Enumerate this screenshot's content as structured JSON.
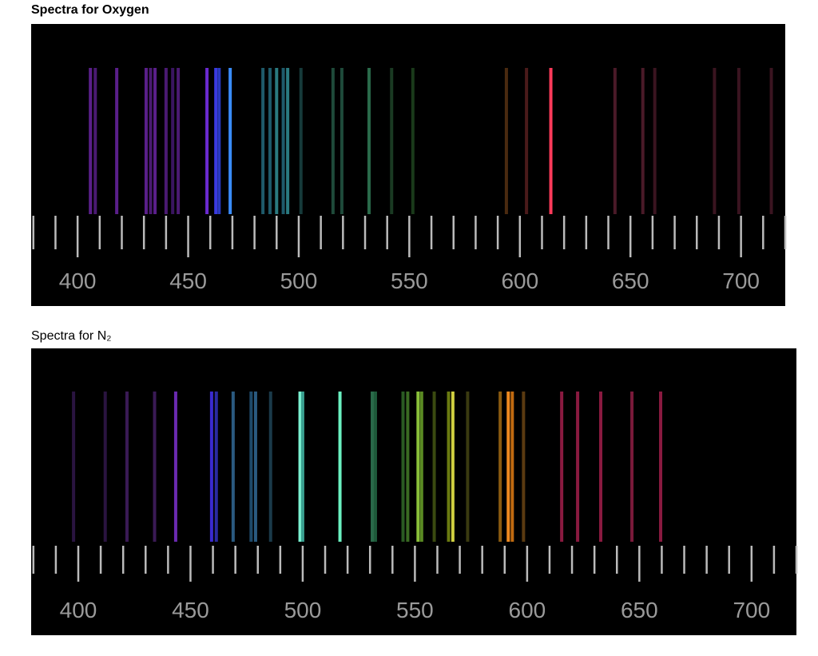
{
  "chart_data": [
    {
      "type": "spectrum",
      "title": "Spectra for Oxygen",
      "title_bold": true,
      "xlim": [
        379,
        720
      ],
      "xticks": [
        400,
        450,
        500,
        550,
        600,
        650,
        700
      ],
      "minor_xticks": [
        380,
        390,
        410,
        420,
        430,
        440,
        460,
        470,
        480,
        490,
        510,
        520,
        530,
        540,
        560,
        570,
        580,
        590,
        610,
        620,
        630,
        640,
        660,
        670,
        680,
        690,
        710,
        720
      ],
      "lines": [
        405.8,
        408,
        417.7,
        431,
        433,
        435,
        440,
        443,
        445.5,
        458.5,
        462.5,
        464,
        469,
        483.8,
        487,
        490,
        493,
        495,
        501,
        515.5,
        519.5,
        531.8,
        542,
        551.6,
        593.9,
        603,
        614,
        643,
        655.6,
        661,
        688,
        699,
        713.7
      ],
      "colors": [
        "#5a1f8a",
        "#4a1a72",
        "#5a1f8a",
        "#5a1f8a",
        "#4a1a72",
        "#5a1f8a",
        "#4a1a72",
        "#3a1560",
        "#4a1a72",
        "#6a2ad0",
        "#3a3ae0",
        "#2a3ac0",
        "#3a8cff",
        "#1e5a6a",
        "#1e5a6a",
        "#2a7a80",
        "#1e5a6a",
        "#2a7a80",
        "#163a3a",
        "#1e4a3a",
        "#1e4a3a",
        "#2a6a4a",
        "#1a3a22",
        "#1a3a1a",
        "#4a2a10",
        "#4a1a1a",
        "#ff3a5a",
        "#4a1a28",
        "#4a1a28",
        "#3a1420",
        "#3a1420",
        "#3a1420",
        "#3a1420"
      ]
    },
    {
      "type": "spectrum",
      "title": "Spectra for N₂",
      "title_bold": false,
      "xlim": [
        379,
        720
      ],
      "xticks": [
        400,
        450,
        500,
        550,
        600,
        650,
        700
      ],
      "minor_xticks": [
        380,
        390,
        410,
        420,
        430,
        440,
        460,
        470,
        480,
        490,
        510,
        520,
        530,
        540,
        560,
        570,
        580,
        590,
        610,
        620,
        630,
        640,
        660,
        670,
        680,
        690,
        710,
        720
      ],
      "lines": [
        397.9,
        412,
        421.7,
        434,
        443.4,
        459.4,
        461.5,
        469,
        477,
        479,
        485.7,
        498.8,
        500,
        516.6,
        531,
        532.4,
        544.7,
        546.8,
        551.4,
        553,
        558.6,
        565,
        566.9,
        573.5,
        588,
        591.6,
        593.4,
        598.4,
        615.4,
        622.5,
        632.8,
        646.7,
        659.5
      ],
      "colors": [
        "#2a1440",
        "#2a1440",
        "#3a1a55",
        "#3a1a55",
        "#6a2ab0",
        "#3a2ad0",
        "#2a2aa0",
        "#2a5a80",
        "#1e4a6a",
        "#2a5a80",
        "#1a3a4a",
        "#7af0d0",
        "#3aa090",
        "#6af0c0",
        "#2a6a4a",
        "#1e5a3a",
        "#2a5a22",
        "#3a6a22",
        "#8ac03a",
        "#5a8a22",
        "#3a4a10",
        "#6a7a10",
        "#d0d040",
        "#3a3a10",
        "#8a5a10",
        "#f08a20",
        "#c06a10",
        "#5a3a10",
        "#8a1a40",
        "#8a1a40",
        "#8a1a40",
        "#7a1a3a",
        "#8a1a40"
      ]
    }
  ]
}
